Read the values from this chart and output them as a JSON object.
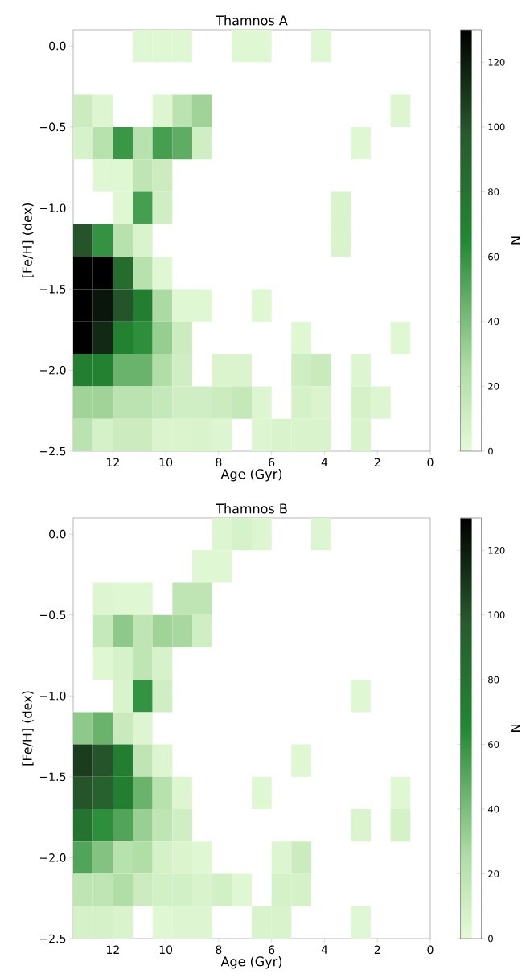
{
  "chart_data": [
    {
      "type": "scatter",
      "title": "Thamnos A",
      "xlabel": "Age (Gyr)",
      "ylabel": "[Fe/H] (dex)",
      "clabel": "N",
      "marker": "square",
      "x": [
        10.875,
        10.125,
        9.375,
        7.125,
        6.375,
        4.125,
        13.125,
        12.375,
        10.125,
        9.375,
        8.625,
        1.125,
        13.125,
        12.375,
        11.625,
        10.875,
        10.125,
        9.375,
        8.625,
        2.625,
        12.375,
        11.625,
        10.875,
        10.125,
        11.625,
        10.875,
        10.125,
        3.375,
        13.125,
        12.375,
        11.625,
        10.875,
        3.375,
        13.125,
        12.375,
        11.625,
        10.875,
        10.125,
        13.125,
        12.375,
        11.625,
        10.875,
        10.125,
        9.375,
        8.625,
        6.375,
        13.125,
        12.375,
        11.625,
        10.875,
        10.125,
        9.375,
        4.875,
        1.125,
        13.125,
        12.375,
        11.625,
        10.875,
        10.125,
        9.375,
        7.875,
        7.125,
        4.875,
        4.125,
        2.625,
        13.125,
        12.375,
        11.625,
        10.875,
        10.125,
        9.375,
        8.625,
        7.875,
        7.125,
        6.375,
        4.875,
        4.125,
        2.625,
        1.875,
        13.125,
        12.375,
        11.625,
        10.875,
        10.125,
        9.375,
        8.625,
        7.875,
        6.375,
        5.625,
        4.875,
        4.125,
        2.625
      ],
      "values": [
        0,
        0,
        0,
        0,
        0,
        0,
        -0.4,
        -0.4,
        -0.4,
        -0.4,
        -0.4,
        -0.4,
        -0.6,
        -0.6,
        -0.6,
        -0.6,
        -0.6,
        -0.6,
        -0.6,
        -0.6,
        -0.8,
        -0.8,
        -0.8,
        -0.8,
        -1.0,
        -1.0,
        -1.0,
        -1.0,
        -1.2,
        -1.2,
        -1.2,
        -1.2,
        -1.2,
        -1.4,
        -1.4,
        -1.4,
        -1.4,
        -1.4,
        -1.6,
        -1.6,
        -1.6,
        -1.6,
        -1.6,
        -1.6,
        -1.6,
        -1.6,
        -1.8,
        -1.8,
        -1.8,
        -1.8,
        -1.8,
        -1.8,
        -1.8,
        -1.8,
        -2.0,
        -2.0,
        -2.0,
        -2.0,
        -2.0,
        -2.0,
        -2.0,
        -2.0,
        -2.0,
        -2.0,
        -2.0,
        -2.2,
        -2.2,
        -2.2,
        -2.2,
        -2.2,
        -2.2,
        -2.2,
        -2.2,
        -2.2,
        -2.2,
        -2.2,
        -2.2,
        -2.2,
        -2.2,
        -2.4,
        -2.4,
        -2.4,
        -2.4,
        -2.4,
        -2.4,
        -2.4,
        -2.4,
        -2.4,
        -2.4,
        -2.4,
        -2.4,
        -2.4
      ],
      "cvalues": [
        3,
        3,
        3,
        3,
        3,
        3,
        12,
        4,
        4,
        20,
        30,
        4,
        7,
        22,
        58,
        22,
        55,
        48,
        10,
        3,
        3,
        3,
        18,
        12,
        3,
        55,
        10,
        6,
        100,
        60,
        22,
        6,
        6,
        130,
        130,
        85,
        22,
        3,
        130,
        122,
        100,
        72,
        27,
        3,
        3,
        3,
        130,
        115,
        70,
        62,
        33,
        12,
        3,
        3,
        72,
        70,
        45,
        45,
        25,
        10,
        5,
        5,
        10,
        14,
        4,
        30,
        30,
        20,
        20,
        16,
        10,
        10,
        12,
        16,
        4,
        8,
        5,
        8,
        4,
        20,
        8,
        12,
        12,
        5,
        5,
        6,
        4,
        4,
        6,
        6,
        6,
        6
      ],
      "xlim": [
        13.5,
        0
      ],
      "xticks": [
        12,
        10,
        8,
        6,
        4,
        2,
        0
      ],
      "ylim": [
        -2.5,
        0.1
      ],
      "yticks": [
        {
          "value": 0,
          "label": "0.0"
        },
        {
          "value": -0.5,
          "label": "−0.5"
        },
        {
          "value": -1,
          "label": "−1.0"
        },
        {
          "value": -1.5,
          "label": "−1.5"
        },
        {
          "value": -2,
          "label": "−2.0"
        },
        {
          "value": -2.5,
          "label": "−2.5"
        }
      ],
      "clim": [
        0,
        130
      ],
      "cticks": [
        0,
        20,
        40,
        60,
        80,
        100,
        120
      ]
    },
    {
      "type": "scatter",
      "title": "Thamnos B",
      "xlabel": "Age (Gyr)",
      "ylabel": "[Fe/H] (dex)",
      "clabel": "N",
      "marker": "square",
      "x": [
        7.875,
        7.125,
        6.375,
        4.125,
        8.625,
        7.875,
        12.375,
        11.625,
        10.875,
        9.375,
        8.625,
        12.375,
        11.625,
        10.875,
        10.125,
        9.375,
        8.625,
        12.375,
        11.625,
        10.875,
        10.125,
        11.625,
        10.875,
        10.125,
        2.625,
        13.125,
        12.375,
        11.625,
        10.875,
        13.125,
        12.375,
        11.625,
        10.875,
        10.125,
        4.875,
        13.125,
        12.375,
        11.625,
        10.875,
        10.125,
        9.375,
        6.375,
        1.125,
        13.125,
        12.375,
        11.625,
        10.875,
        10.125,
        9.375,
        2.625,
        1.125,
        13.125,
        12.375,
        11.625,
        10.875,
        10.125,
        9.375,
        8.625,
        5.625,
        4.875,
        13.125,
        12.375,
        11.625,
        10.875,
        10.125,
        9.375,
        8.625,
        7.875,
        7.125,
        5.625,
        4.875,
        13.125,
        12.375,
        11.625,
        10.125,
        9.375,
        8.625,
        6.375,
        5.625,
        2.625
      ],
      "values": [
        0,
        0,
        0,
        0,
        -0.2,
        -0.2,
        -0.4,
        -0.4,
        -0.4,
        -0.4,
        -0.4,
        -0.6,
        -0.6,
        -0.6,
        -0.6,
        -0.6,
        -0.6,
        -0.8,
        -0.8,
        -0.8,
        -0.8,
        -1.0,
        -1.0,
        -1.0,
        -1.0,
        -1.2,
        -1.2,
        -1.2,
        -1.2,
        -1.4,
        -1.4,
        -1.4,
        -1.4,
        -1.4,
        -1.4,
        -1.6,
        -1.6,
        -1.6,
        -1.6,
        -1.6,
        -1.6,
        -1.6,
        -1.6,
        -1.8,
        -1.8,
        -1.8,
        -1.8,
        -1.8,
        -1.8,
        -1.8,
        -1.8,
        -2.0,
        -2.0,
        -2.0,
        -2.0,
        -2.0,
        -2.0,
        -2.0,
        -2.0,
        -2.0,
        -2.2,
        -2.2,
        -2.2,
        -2.2,
        -2.2,
        -2.2,
        -2.2,
        -2.2,
        -2.2,
        -2.2,
        -2.2,
        -2.4,
        -2.4,
        -2.4,
        -2.4,
        -2.4,
        -2.4,
        -2.4,
        -2.4,
        -2.4
      ],
      "cvalues": [
        4,
        7,
        4,
        4,
        3,
        3,
        4,
        3,
        3,
        18,
        18,
        15,
        35,
        18,
        30,
        28,
        10,
        3,
        7,
        18,
        7,
        6,
        60,
        10,
        3,
        35,
        45,
        14,
        4,
        108,
        100,
        72,
        18,
        4,
        3,
        100,
        92,
        72,
        45,
        22,
        4,
        3,
        3,
        80,
        62,
        52,
        32,
        18,
        10,
        5,
        8,
        52,
        38,
        22,
        25,
        8,
        5,
        3,
        4,
        12,
        18,
        18,
        25,
        12,
        9,
        9,
        6,
        9,
        3,
        8,
        8,
        8,
        8,
        6,
        3,
        4,
        4,
        6,
        6,
        3
      ],
      "xlim": [
        13.5,
        0
      ],
      "xticks": [
        12,
        10,
        8,
        6,
        4,
        2,
        0
      ],
      "ylim": [
        -2.5,
        0.1
      ],
      "yticks": [
        {
          "value": 0,
          "label": "0.0"
        },
        {
          "value": -0.5,
          "label": "−0.5"
        },
        {
          "value": -1,
          "label": "−1.0"
        },
        {
          "value": -1.5,
          "label": "−1.5"
        },
        {
          "value": -2,
          "label": "−2.0"
        },
        {
          "value": -2.5,
          "label": "−2.5"
        }
      ],
      "clim": [
        0,
        130
      ],
      "cticks": [
        0,
        20,
        40,
        60,
        80,
        100,
        120
      ]
    }
  ]
}
